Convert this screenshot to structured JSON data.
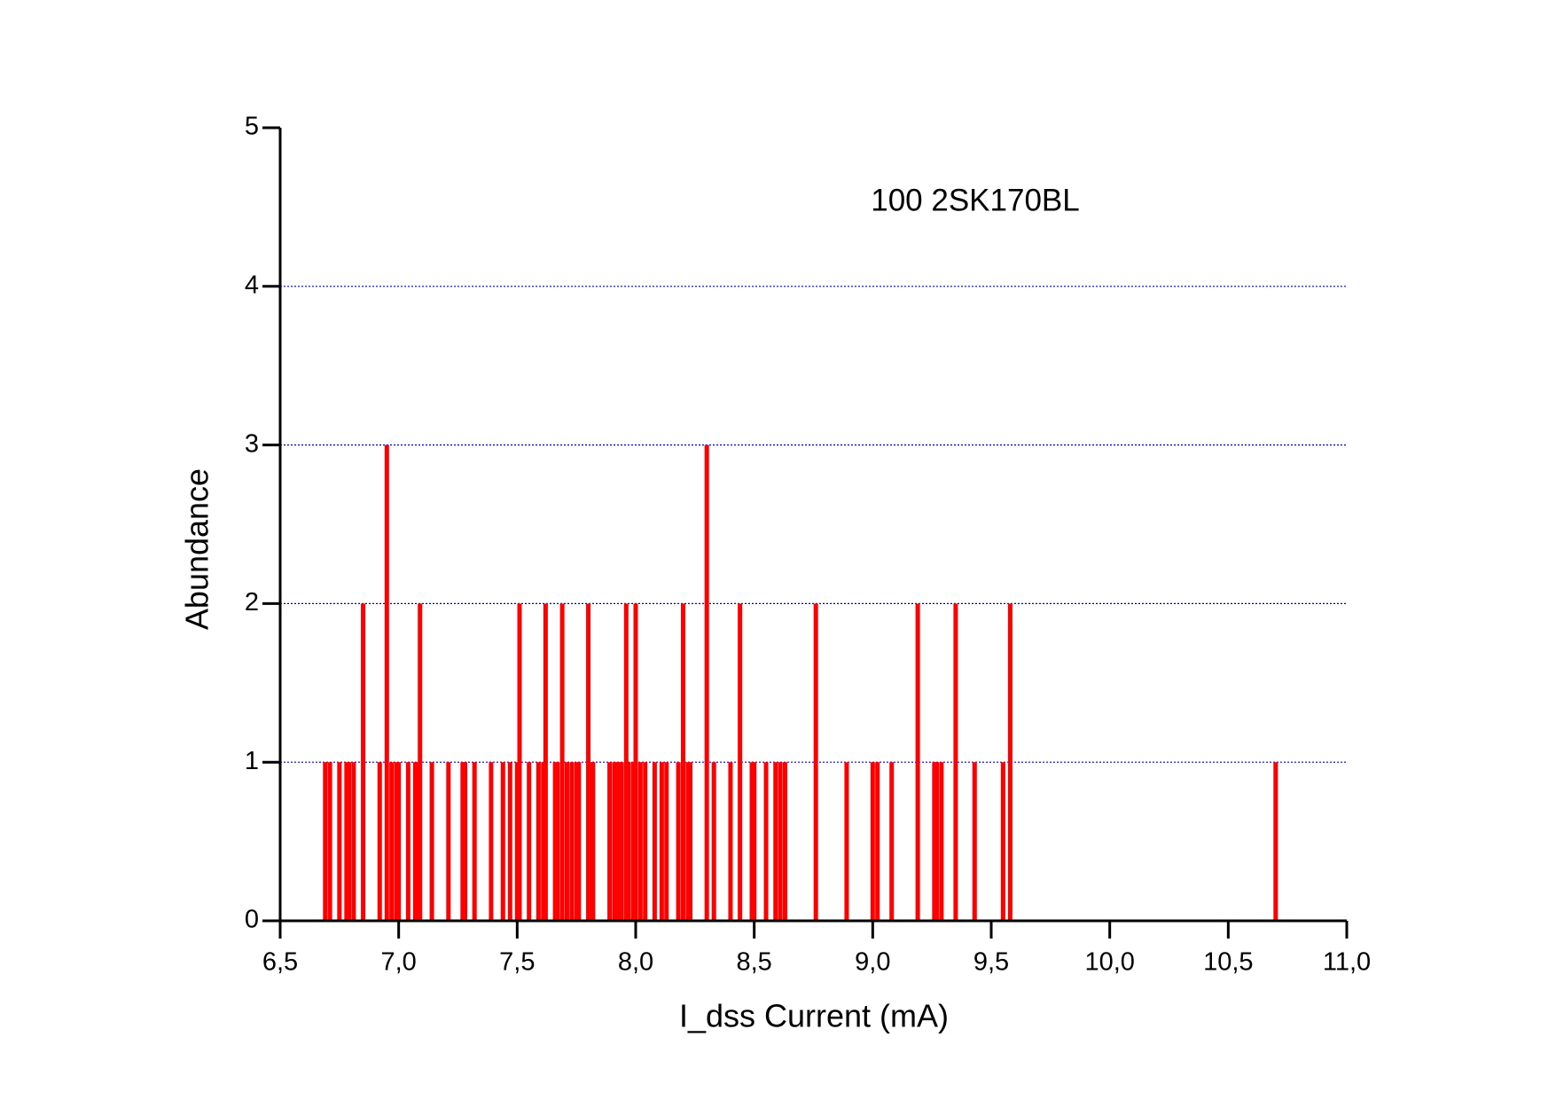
{
  "chart_data": {
    "type": "bar",
    "annotation": "100 2SK170BL",
    "x_label": "I_dss Current (mA)",
    "y_label": "Abundance",
    "color": "#ff0000",
    "grid": true,
    "grid_color": "#0000cc",
    "x": [
      6.69,
      6.71,
      6.75,
      6.78,
      6.79,
      6.81,
      6.85,
      6.92,
      6.95,
      6.97,
      6.99,
      7.0,
      7.04,
      7.07,
      7.08,
      7.09,
      7.14,
      7.21,
      7.27,
      7.28,
      7.32,
      7.39,
      7.44,
      7.47,
      7.5,
      7.51,
      7.55,
      7.59,
      7.61,
      7.62,
      7.66,
      7.67,
      7.69,
      7.71,
      7.73,
      7.75,
      7.76,
      7.8,
      7.81,
      7.82,
      7.89,
      7.91,
      7.92,
      7.93,
      7.94,
      7.96,
      7.97,
      7.99,
      8.0,
      8.02,
      8.04,
      8.08,
      8.11,
      8.13,
      8.18,
      8.2,
      8.22,
      8.23,
      8.3,
      8.33,
      8.4,
      8.44,
      8.49,
      8.5,
      8.55,
      8.59,
      8.61,
      8.63,
      8.76,
      8.89,
      9.0,
      9.02,
      9.08,
      9.19,
      9.26,
      9.27,
      9.29,
      9.35,
      9.43,
      9.55,
      9.58,
      10.7
    ],
    "values": [
      1,
      1,
      1,
      1,
      1,
      1,
      2,
      1,
      3,
      1,
      1,
      1,
      1,
      1,
      1,
      2,
      1,
      1,
      1,
      1,
      1,
      1,
      1,
      1,
      1,
      2,
      1,
      1,
      1,
      2,
      1,
      1,
      2,
      1,
      1,
      1,
      1,
      2,
      1,
      1,
      1,
      1,
      1,
      1,
      1,
      2,
      1,
      1,
      2,
      1,
      1,
      1,
      1,
      1,
      1,
      2,
      1,
      1,
      3,
      1,
      1,
      2,
      1,
      1,
      1,
      1,
      1,
      1,
      2,
      1,
      1,
      1,
      1,
      2,
      1,
      1,
      1,
      2,
      1,
      1,
      2,
      1
    ],
    "xlim": [
      6.5,
      11.0
    ],
    "xticks": [
      {
        "value": 6.5,
        "label": "6,5"
      },
      {
        "value": 7.0,
        "label": "7,0"
      },
      {
        "value": 7.5,
        "label": "7,5"
      },
      {
        "value": 8.0,
        "label": "8,0"
      },
      {
        "value": 8.5,
        "label": "8,5"
      },
      {
        "value": 9.0,
        "label": "9,0"
      },
      {
        "value": 9.5,
        "label": "9,5"
      },
      {
        "value": 10.0,
        "label": "10,0"
      },
      {
        "value": 10.5,
        "label": "10,5"
      },
      {
        "value": 11.0,
        "label": "11,0"
      }
    ],
    "ylim": [
      0,
      5
    ],
    "yticks": [
      0,
      1,
      2,
      3,
      4,
      5
    ]
  }
}
